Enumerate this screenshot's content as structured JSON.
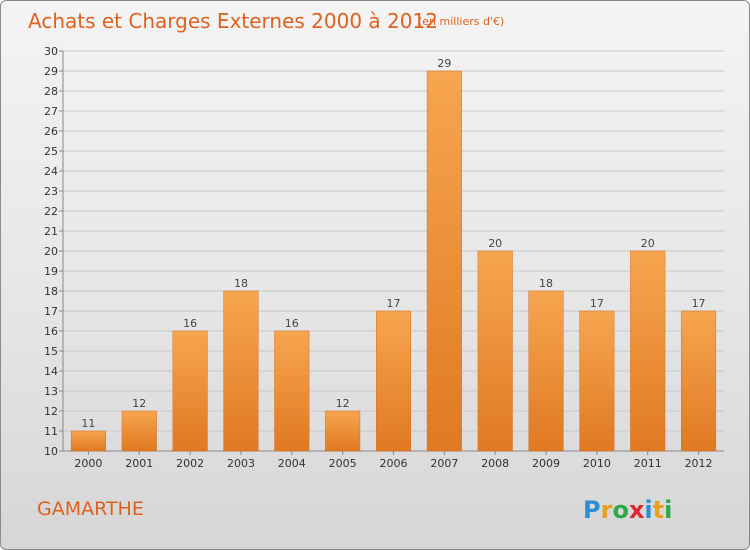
{
  "chart_data": {
    "type": "bar",
    "title": "Achats et Charges Externes 2000 à 2012",
    "subtitle": "(en milliers d'€)",
    "categories": [
      "2000",
      "2001",
      "2002",
      "2003",
      "2004",
      "2005",
      "2006",
      "2007",
      "2008",
      "2009",
      "2010",
      "2011",
      "2012"
    ],
    "values": [
      11,
      12,
      16,
      18,
      16,
      12,
      17,
      29,
      20,
      18,
      17,
      20,
      17
    ],
    "ylim": [
      10,
      30
    ],
    "yticks": [
      10,
      11,
      12,
      13,
      14,
      15,
      16,
      17,
      18,
      19,
      20,
      21,
      22,
      23,
      24,
      25,
      26,
      27,
      28,
      29,
      30
    ],
    "grid": true,
    "bar_color_light": "#f7a550",
    "bar_color_dark": "#e07922",
    "accent_color": "#e0611f"
  },
  "footer": {
    "commune": "GAMARTHE",
    "brand_letters": [
      {
        "ch": "P",
        "color": "#2a8fd6"
      },
      {
        "ch": "r",
        "color": "#e8a01e"
      },
      {
        "ch": "o",
        "color": "#2ea84a"
      },
      {
        "ch": "x",
        "color": "#e0262e"
      },
      {
        "ch": "i",
        "color": "#2a8fd6"
      },
      {
        "ch": "t",
        "color": "#e8a01e"
      },
      {
        "ch": "i",
        "color": "#2ea84a"
      }
    ]
  }
}
